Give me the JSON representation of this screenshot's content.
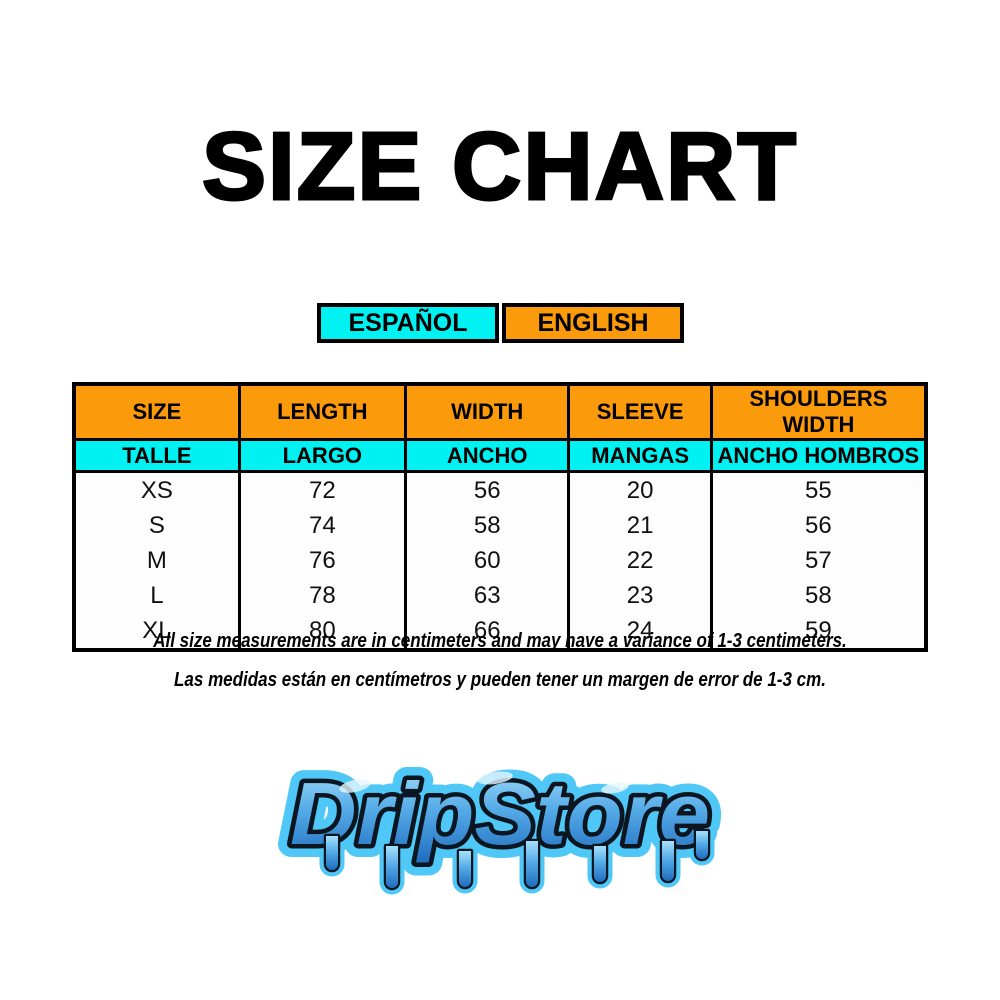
{
  "title": "SIZE CHART",
  "tabs": [
    {
      "label": "ESPAÑOL",
      "color": "#00F1F1"
    },
    {
      "label": "ENGLISH",
      "color": "#FB9A0B"
    }
  ],
  "chart_data": {
    "type": "table",
    "title": "SIZE CHART",
    "columns_en": [
      "SIZE",
      "LENGTH",
      "WIDTH",
      "SLEEVE",
      "SHOULDERS WIDTH"
    ],
    "columns_es": [
      "TALLE",
      "LARGO",
      "ANCHO",
      "MANGAS",
      "ANCHO HOMBROS"
    ],
    "rows": [
      [
        "XS",
        72,
        56,
        20,
        55
      ],
      [
        "S",
        74,
        58,
        21,
        56
      ],
      [
        "M",
        76,
        60,
        22,
        57
      ],
      [
        "L",
        78,
        63,
        23,
        58
      ],
      [
        "XL",
        80,
        66,
        24,
        59
      ]
    ],
    "header_color_en": "#FB9A0B",
    "header_color_es": "#00F1F1",
    "units": "centimeters"
  },
  "notes": {
    "english": "All size measurements are in centimeters and may have a variance of 1-3 centimeters.",
    "spanish": "Las medidas están en centímetros y pueden tener un margen de error de 1-3 cm."
  },
  "logo": {
    "text": "DripStore",
    "glow_color": "#4FC8F8",
    "outline_color": "#0C1620",
    "fill_top": "#A6E0FA",
    "fill_mid": "#56ACE8",
    "fill_bottom": "#1F6CBE"
  }
}
